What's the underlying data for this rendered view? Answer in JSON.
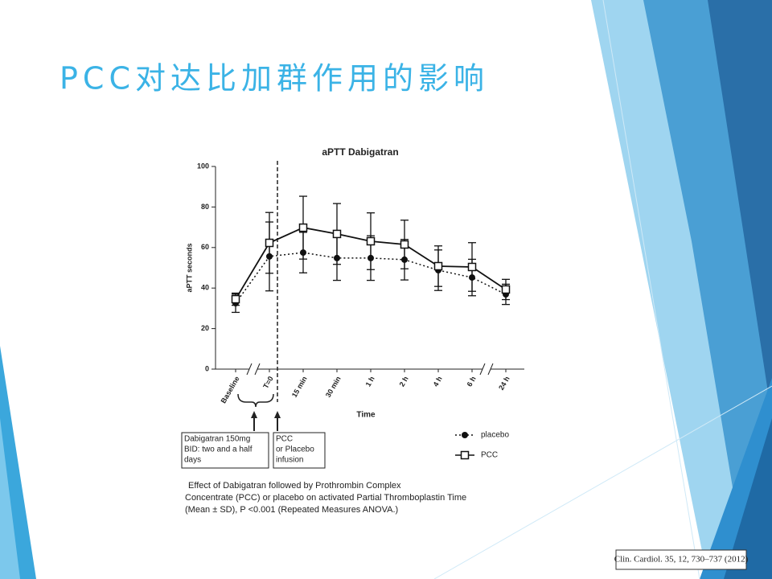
{
  "slide": {
    "title": "PCC对达比加群作用的影响",
    "citation": "Clin. Cardiol. 35, 12, 730–737 (2012)"
  },
  "chart_data": {
    "type": "line",
    "title": "aPTT Dabigatran",
    "ylabel": "aPTT seconds",
    "xlabel": "Time",
    "categories": [
      "Baseline",
      "T=0",
      "15 min",
      "30 min",
      "1 h",
      "2 h",
      "4 h",
      "6 h",
      "24 h"
    ],
    "ylim": [
      0,
      100
    ],
    "yticks": [
      0,
      20,
      40,
      60,
      80,
      100
    ],
    "series": [
      {
        "name": "placebo",
        "color": "#111111",
        "linestyle": "dotted",
        "marker": "circle",
        "values": [
          32.5,
          55.6,
          57.5,
          54.8,
          54.8,
          54,
          48.8,
          45.2,
          36.9
        ],
        "errors": [
          4.5,
          17,
          10,
          11,
          11,
          10,
          10,
          9,
          5
        ]
      },
      {
        "name": "PCC",
        "color": "#111111",
        "linestyle": "solid",
        "marker": "square",
        "values": [
          34.5,
          62.3,
          69.8,
          66.7,
          63.1,
          61.5,
          50.8,
          50.4,
          39.3
        ],
        "errors": [
          3,
          15,
          15.5,
          15,
          14,
          12,
          10,
          12,
          5
        ]
      }
    ],
    "annotations": [
      [
        "Dabigatran 150mg",
        "BID: two and a half",
        "days"
      ],
      [
        "PCC",
        "or Placebo",
        "infusion"
      ]
    ],
    "caption": [
      "Effect of Dabigatran followed by Prothrombin Complex",
      "Concentrate (PCC) or placebo on activated Partial Thromboplastin Time",
      "(Mean ± SD), P <0.001 (Repeated Measures ANOVA.)"
    ]
  }
}
